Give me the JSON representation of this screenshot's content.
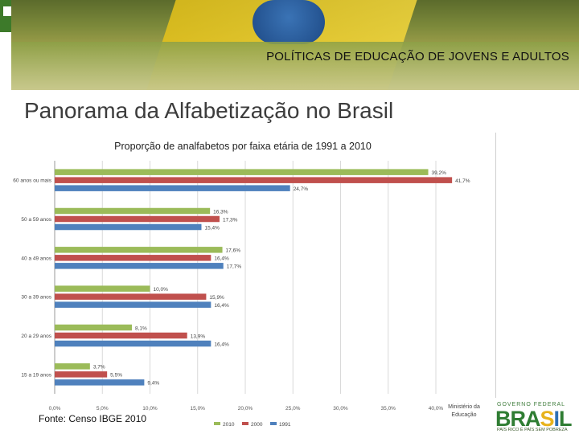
{
  "header": {
    "title": "POLÍTICAS DE EDUCAÇÃO DE JOVENS E  ADULTOS"
  },
  "page": {
    "title": "Panorama da Alfabetização no Brasil"
  },
  "source": "Fonte: Censo IBGE 2010",
  "ministry": {
    "line1": "Ministério da",
    "line2": "Educação"
  },
  "logo": {
    "stars": "GOVERNO FEDERAL",
    "word_b": "BRA",
    "word_s": "S",
    "word_i": "I",
    "word_l": "L",
    "slogan": "PAÍS RICO É PAÍS SEM POBREZA"
  },
  "colors": {
    "s2010": "#9bbb59",
    "s2000": "#c0504d",
    "s1991": "#4f81bd",
    "grid": "#d9d9d9"
  },
  "chart_data": {
    "type": "bar",
    "orientation": "horizontal",
    "title": "Proporção de analfabetos por faixa etária de 1991 a 2010",
    "categories": [
      "60 anos ou mais",
      "50 a 59 anos",
      "40 a 49 anos",
      "30 a 39 anos",
      "20 a 29 anos",
      "15 a 19 anos"
    ],
    "series": [
      {
        "name": "2010",
        "values": [
          39.2,
          16.3,
          17.6,
          10.0,
          8.1,
          3.7
        ],
        "labels": [
          "39,2%",
          "16,3%",
          "17,6%",
          "10,0%",
          "8,1%",
          "3,7%"
        ]
      },
      {
        "name": "2000",
        "values": [
          41.7,
          17.3,
          16.4,
          15.9,
          13.9,
          5.5
        ],
        "labels": [
          "41,7%",
          "17,3%",
          "16,4%",
          "15,9%",
          "13,9%",
          "5,5%"
        ]
      },
      {
        "name": "1991",
        "values": [
          24.7,
          15.4,
          17.7,
          16.4,
          16.4,
          9.4
        ],
        "labels": [
          "24,7%",
          "15,4%",
          "17,7%",
          "16,4%",
          "16,4%",
          "9,4%"
        ]
      }
    ],
    "x_ticks": [
      "0,0%",
      "5,0%",
      "10,0%",
      "15,0%",
      "20,0%",
      "25,0%",
      "30,0%",
      "35,0%",
      "40,0%"
    ],
    "xlim": [
      0,
      40
    ],
    "grid": true,
    "legend": "bottom"
  }
}
